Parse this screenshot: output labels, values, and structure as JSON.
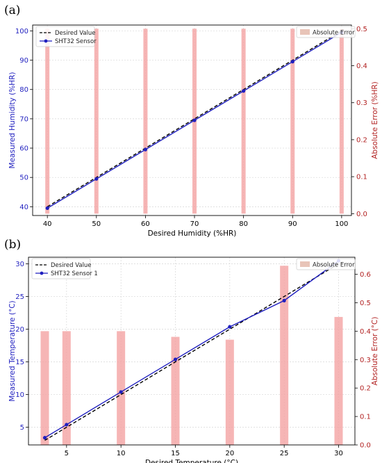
{
  "chart_data": [
    {
      "id": "a",
      "panel_label": "(a)",
      "type": "line",
      "xlabel": "Desired Humidity (%HR)",
      "ylabel": "Measured Humidity (%HR)",
      "y2label": "Absolute Error (%HR)",
      "xlim": [
        37,
        102
      ],
      "ylim": [
        37,
        102
      ],
      "y2lim": [
        -0.005,
        0.51
      ],
      "xticks": [
        40,
        50,
        60,
        70,
        80,
        90,
        100
      ],
      "yticks": [
        40,
        50,
        60,
        70,
        80,
        90,
        100
      ],
      "y2ticks": [
        0.0,
        0.1,
        0.2,
        0.3,
        0.4,
        0.5
      ],
      "y2tick_labels": [
        "0.0",
        "0.1",
        "0.2",
        "0.3",
        "0.4",
        "0.5"
      ],
      "desired": {
        "name": "Desired Value",
        "x": [
          40,
          100
        ],
        "y": [
          40,
          100
        ]
      },
      "sensor": {
        "name": "SHT32 Sensor",
        "x": [
          40,
          50,
          60,
          70,
          80,
          90,
          100
        ],
        "y": [
          39.5,
          49.5,
          59.5,
          69.5,
          79.5,
          89.5,
          99.5
        ]
      },
      "error": {
        "name": "Absolute Error",
        "x": [
          40,
          50,
          60,
          70,
          80,
          90,
          100
        ],
        "values": [
          0.5,
          0.5,
          0.5,
          0.5,
          0.5,
          0.5,
          0.5
        ]
      },
      "grid": true,
      "legend_left": "top-left",
      "legend_right": "top-right",
      "colors": {
        "desired": "#000000",
        "sensor": "#1f1fbf",
        "error": "#f4a3a3",
        "left_axis": "#1f1fbf",
        "right_axis": "#b22222"
      }
    },
    {
      "id": "b",
      "panel_label": "(b)",
      "type": "line",
      "xlabel": "Desired Temperature (°C)",
      "ylabel": "Measured Temperature (°C)",
      "y2label": "Absolute Error (°C)",
      "xlim": [
        1.5,
        31.5
      ],
      "ylim": [
        2.3,
        31.0
      ],
      "y2lim": [
        0.0,
        0.66
      ],
      "xticks": [
        5,
        10,
        15,
        20,
        25,
        30
      ],
      "yticks": [
        5,
        10,
        15,
        20,
        25,
        30
      ],
      "y2ticks": [
        0.0,
        0.1,
        0.2,
        0.3,
        0.4,
        0.5,
        0.6
      ],
      "y2tick_labels": [
        "0.0",
        "0.1",
        "0.2",
        "0.3",
        "0.4",
        "0.5",
        "0.6"
      ],
      "desired": {
        "name": "Desired Value",
        "x": [
          3,
          30
        ],
        "y": [
          3,
          30
        ]
      },
      "sensor": {
        "name": "SHT32 Sensor 1",
        "x": [
          3,
          5,
          10,
          15,
          20,
          25,
          30
        ],
        "y": [
          3.4,
          5.4,
          10.4,
          15.38,
          20.36,
          24.37,
          30.45
        ]
      },
      "error": {
        "name": "Absolute Error",
        "x": [
          3,
          5,
          10,
          15,
          20,
          25,
          30
        ],
        "values": [
          0.4,
          0.4,
          0.4,
          0.38,
          0.37,
          0.63,
          0.45
        ]
      },
      "grid": true,
      "legend_left": "top-left",
      "legend_right": "top-right",
      "colors": {
        "desired": "#000000",
        "sensor": "#1f1fbf",
        "error": "#f4a3a3",
        "left_axis": "#1f1fbf",
        "right_axis": "#b22222"
      }
    }
  ]
}
